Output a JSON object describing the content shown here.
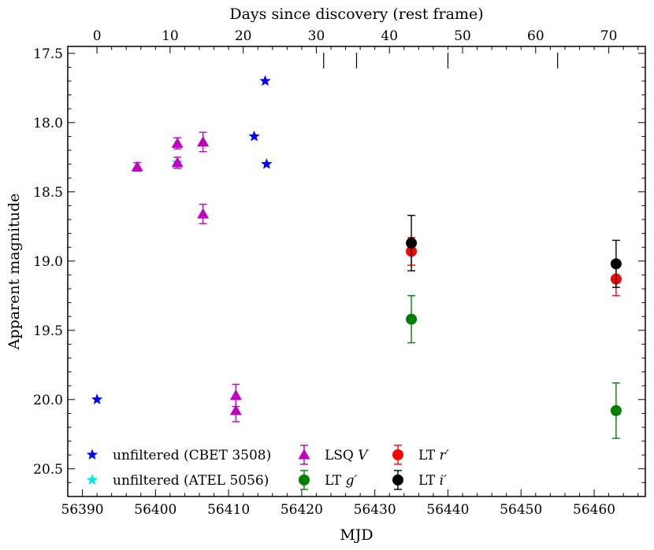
{
  "chart_data": {
    "type": "scatter",
    "xlabel": "MJD",
    "ylabel": "Apparent magnitude",
    "top_xlabel": "Days since discovery (rest frame)",
    "xlim": [
      56388,
      56467
    ],
    "ylim": [
      20.7,
      17.45
    ],
    "y_inverted": true,
    "x_ticks": [
      "56390",
      "56400",
      "56410",
      "56420",
      "56430",
      "56440",
      "56450",
      "56460"
    ],
    "y_ticks": [
      "17.5",
      "18.0",
      "18.5",
      "19.0",
      "19.5",
      "20.0",
      "20.5"
    ],
    "top_ticks": [
      "0",
      "10",
      "20",
      "30",
      "40",
      "50",
      "60",
      "70"
    ],
    "top_axis": {
      "zero_mjd": 56392,
      "mjd_per_day": 1.0
    },
    "spectra_epochs_mjd": [
      56423,
      56427.5,
      56440,
      56455
    ],
    "grid": false,
    "legend_position": "lower-left",
    "series": [
      {
        "name": "unfiltered (CBET 3508)",
        "marker": "star",
        "color": "#0000ff",
        "points": [
          {
            "x": 56392,
            "y": 20.0
          },
          {
            "x": 56413.5,
            "y": 18.1
          },
          {
            "x": 56415,
            "y": 17.7
          },
          {
            "x": 56415.2,
            "y": 18.3
          }
        ]
      },
      {
        "name": "unfiltered (ATEL 5056)",
        "marker": "star",
        "color": "#00e5e5",
        "points": [
          {
            "x": 56403,
            "y": 18.29
          }
        ]
      },
      {
        "name": "LSQ V",
        "marker": "triangle",
        "color": "#c000c0",
        "points": [
          {
            "x": 56397.5,
            "y": 18.32,
            "err": 0.03
          },
          {
            "x": 56403,
            "y": 18.15,
            "err": 0.04
          },
          {
            "x": 56403,
            "y": 18.29,
            "err": 0.04
          },
          {
            "x": 56406.5,
            "y": 18.14,
            "err": 0.07
          },
          {
            "x": 56406.5,
            "y": 18.66,
            "err": 0.07
          },
          {
            "x": 56411,
            "y": 19.97,
            "err": 0.08
          },
          {
            "x": 56411,
            "y": 20.08,
            "err": 0.08
          }
        ]
      },
      {
        "name": "LT g′",
        "marker": "circle",
        "color": "#008000",
        "points": [
          {
            "x": 56435,
            "y": 19.42,
            "err": 0.17
          },
          {
            "x": 56463,
            "y": 20.08,
            "err": 0.2
          }
        ]
      },
      {
        "name": "LT r′",
        "marker": "circle",
        "color": "#ff0000",
        "points": [
          {
            "x": 56435,
            "y": 18.93,
            "err": 0.1
          },
          {
            "x": 56463,
            "y": 19.13,
            "err": 0.12
          }
        ]
      },
      {
        "name": "LT i′",
        "marker": "circle",
        "color": "#000000",
        "points": [
          {
            "x": 56435,
            "y": 18.87,
            "err": 0.2
          },
          {
            "x": 56463,
            "y": 19.02,
            "err": 0.17
          }
        ]
      }
    ],
    "legend": [
      {
        "series": 0,
        "label": "unfiltered (CBET 3508)"
      },
      {
        "series": 2,
        "label": "LSQ",
        "italic": "V"
      },
      {
        "series": 4,
        "label": "LT",
        "italic": "r′"
      },
      {
        "series": 1,
        "label": "unfiltered (ATEL 5056)"
      },
      {
        "series": 3,
        "label": "LT",
        "italic": "g′"
      },
      {
        "series": 5,
        "label": "LT",
        "italic": "i′"
      }
    ]
  }
}
